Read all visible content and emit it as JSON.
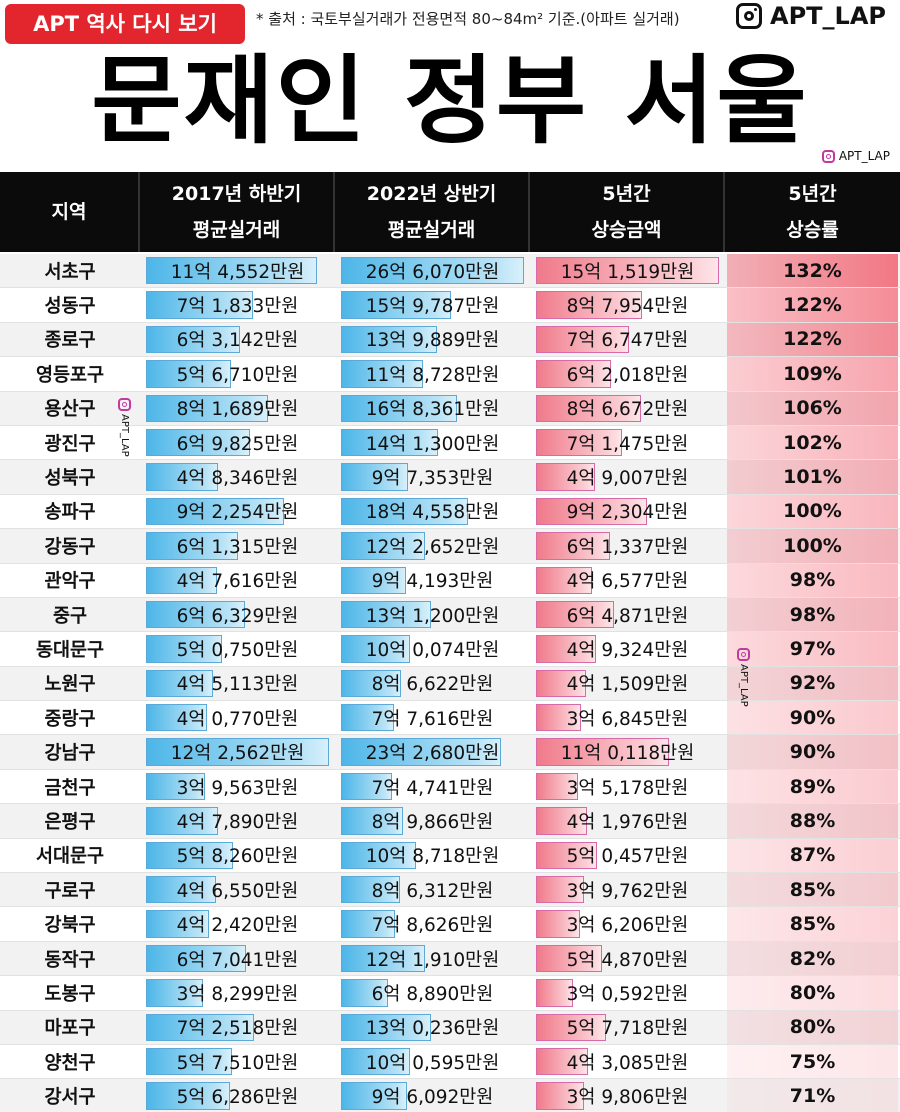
{
  "header": {
    "badge": "APT 역사 다시 보기",
    "source": "* 출처 : 국토부실거래가 전용면적 80~84m² 기준.(아파트 실거래)",
    "brand": "APT_LAP",
    "title": "문재인 정부 서울 APT",
    "mini_brand": "APT_LAP"
  },
  "watermark": "APT_LAP",
  "colors": {
    "badge": "#e3252d",
    "header_bg": "#0b0b0b",
    "price_bar": "#4db6e8",
    "increase_bar": "#f07a8a",
    "rate_high": "#f26a78"
  },
  "chart_data": {
    "type": "table",
    "columns": [
      {
        "line1": "지역",
        "line2": ""
      },
      {
        "line1": "2017년 하반기",
        "line2": "평균실거래"
      },
      {
        "line1": "2022년 상반기",
        "line2": "평균실거래"
      },
      {
        "line1": "5년간",
        "line2": "상승금액"
      },
      {
        "line1": "5년간",
        "line2": "상승률"
      }
    ],
    "rows": [
      {
        "region": "서초구",
        "p2017": "11억 4,552만원",
        "p2022": "26억 6,070만원",
        "increase": "15억 1,519만원",
        "rate": "132%",
        "v2017": 114552,
        "v2022": 266070,
        "vinc": 151519,
        "vrate": 132
      },
      {
        "region": "성동구",
        "p2017": "7억 1,833만원",
        "p2022": "15억 9,787만원",
        "increase": "8억 7,954만원",
        "rate": "122%",
        "v2017": 71833,
        "v2022": 159787,
        "vinc": 87954,
        "vrate": 122
      },
      {
        "region": "종로구",
        "p2017": "6억 3,142만원",
        "p2022": "13억 9,889만원",
        "increase": "7억 6,747만원",
        "rate": "122%",
        "v2017": 63142,
        "v2022": 139889,
        "vinc": 76747,
        "vrate": 122
      },
      {
        "region": "영등포구",
        "p2017": "5억 6,710만원",
        "p2022": "11억 8,728만원",
        "increase": "6억 2,018만원",
        "rate": "109%",
        "v2017": 56710,
        "v2022": 118728,
        "vinc": 62018,
        "vrate": 109
      },
      {
        "region": "용산구",
        "p2017": "8억 1,689만원",
        "p2022": "16억 8,361만원",
        "increase": "8억 6,672만원",
        "rate": "106%",
        "v2017": 81689,
        "v2022": 168361,
        "vinc": 86672,
        "vrate": 106
      },
      {
        "region": "광진구",
        "p2017": "6억 9,825만원",
        "p2022": "14억 1,300만원",
        "increase": "7억 1,475만원",
        "rate": "102%",
        "v2017": 69825,
        "v2022": 141300,
        "vinc": 71475,
        "vrate": 102
      },
      {
        "region": "성북구",
        "p2017": "4억 8,346만원",
        "p2022": "9억 7,353만원",
        "increase": "4억 9,007만원",
        "rate": "101%",
        "v2017": 48346,
        "v2022": 97353,
        "vinc": 49007,
        "vrate": 101
      },
      {
        "region": "송파구",
        "p2017": "9억 2,254만원",
        "p2022": "18억 4,558만원",
        "increase": "9억 2,304만원",
        "rate": "100%",
        "v2017": 92254,
        "v2022": 184558,
        "vinc": 92304,
        "vrate": 100
      },
      {
        "region": "강동구",
        "p2017": "6억 1,315만원",
        "p2022": "12억 2,652만원",
        "increase": "6억 1,337만원",
        "rate": "100%",
        "v2017": 61315,
        "v2022": 122652,
        "vinc": 61337,
        "vrate": 100
      },
      {
        "region": "관악구",
        "p2017": "4억 7,616만원",
        "p2022": "9억 4,193만원",
        "increase": "4억 6,577만원",
        "rate": "98%",
        "v2017": 47616,
        "v2022": 94193,
        "vinc": 46577,
        "vrate": 98
      },
      {
        "region": "중구",
        "p2017": "6억 6,329만원",
        "p2022": "13억 1,200만원",
        "increase": "6억 4,871만원",
        "rate": "98%",
        "v2017": 66329,
        "v2022": 131200,
        "vinc": 64871,
        "vrate": 98
      },
      {
        "region": "동대문구",
        "p2017": "5억 0,750만원",
        "p2022": "10억 0,074만원",
        "increase": "4억 9,324만원",
        "rate": "97%",
        "v2017": 50750,
        "v2022": 100074,
        "vinc": 49324,
        "vrate": 97
      },
      {
        "region": "노원구",
        "p2017": "4억 5,113만원",
        "p2022": "8억 6,622만원",
        "increase": "4억 1,509만원",
        "rate": "92%",
        "v2017": 45113,
        "v2022": 86622,
        "vinc": 41509,
        "vrate": 92
      },
      {
        "region": "중랑구",
        "p2017": "4억 0,770만원",
        "p2022": "7억 7,616만원",
        "increase": "3억 6,845만원",
        "rate": "90%",
        "v2017": 40770,
        "v2022": 77616,
        "vinc": 36845,
        "vrate": 90
      },
      {
        "region": "강남구",
        "p2017": "12억 2,562만원",
        "p2022": "23억 2,680만원",
        "increase": "11억 0,118만원",
        "rate": "90%",
        "v2017": 122562,
        "v2022": 232680,
        "vinc": 110118,
        "vrate": 90
      },
      {
        "region": "금천구",
        "p2017": "3억 9,563만원",
        "p2022": "7억 4,741만원",
        "increase": "3억 5,178만원",
        "rate": "89%",
        "v2017": 39563,
        "v2022": 74741,
        "vinc": 35178,
        "vrate": 89
      },
      {
        "region": "은평구",
        "p2017": "4억 7,890만원",
        "p2022": "8억 9,866만원",
        "increase": "4억 1,976만원",
        "rate": "88%",
        "v2017": 47890,
        "v2022": 89866,
        "vinc": 41976,
        "vrate": 88
      },
      {
        "region": "서대문구",
        "p2017": "5억 8,260만원",
        "p2022": "10억 8,718만원",
        "increase": "5억 0,457만원",
        "rate": "87%",
        "v2017": 58260,
        "v2022": 108718,
        "vinc": 50457,
        "vrate": 87
      },
      {
        "region": "구로구",
        "p2017": "4억 6,550만원",
        "p2022": "8억 6,312만원",
        "increase": "3억 9,762만원",
        "rate": "85%",
        "v2017": 46550,
        "v2022": 86312,
        "vinc": 39762,
        "vrate": 85
      },
      {
        "region": "강북구",
        "p2017": "4억 2,420만원",
        "p2022": "7억 8,626만원",
        "increase": "3억 6,206만원",
        "rate": "85%",
        "v2017": 42420,
        "v2022": 78626,
        "vinc": 36206,
        "vrate": 85
      },
      {
        "region": "동작구",
        "p2017": "6억 7,041만원",
        "p2022": "12억 1,910만원",
        "increase": "5억 4,870만원",
        "rate": "82%",
        "v2017": 67041,
        "v2022": 121910,
        "vinc": 54870,
        "vrate": 82
      },
      {
        "region": "도봉구",
        "p2017": "3억 8,299만원",
        "p2022": "6억 8,890만원",
        "increase": "3억 0,592만원",
        "rate": "80%",
        "v2017": 38299,
        "v2022": 68890,
        "vinc": 30592,
        "vrate": 80
      },
      {
        "region": "마포구",
        "p2017": "7억 2,518만원",
        "p2022": "13억 0,236만원",
        "increase": "5억 7,718만원",
        "rate": "80%",
        "v2017": 72518,
        "v2022": 130236,
        "vinc": 57718,
        "vrate": 80
      },
      {
        "region": "양천구",
        "p2017": "5억 7,510만원",
        "p2022": "10억 0,595만원",
        "increase": "4억 3,085만원",
        "rate": "75%",
        "v2017": 57510,
        "v2022": 100595,
        "vinc": 43085,
        "vrate": 75
      },
      {
        "region": "강서구",
        "p2017": "5억 6,286만원",
        "p2022": "9억 6,092만원",
        "increase": "3억 9,806만원",
        "rate": "71%",
        "v2017": 56286,
        "v2022": 96092,
        "vinc": 39806,
        "vrate": 71
      }
    ]
  }
}
